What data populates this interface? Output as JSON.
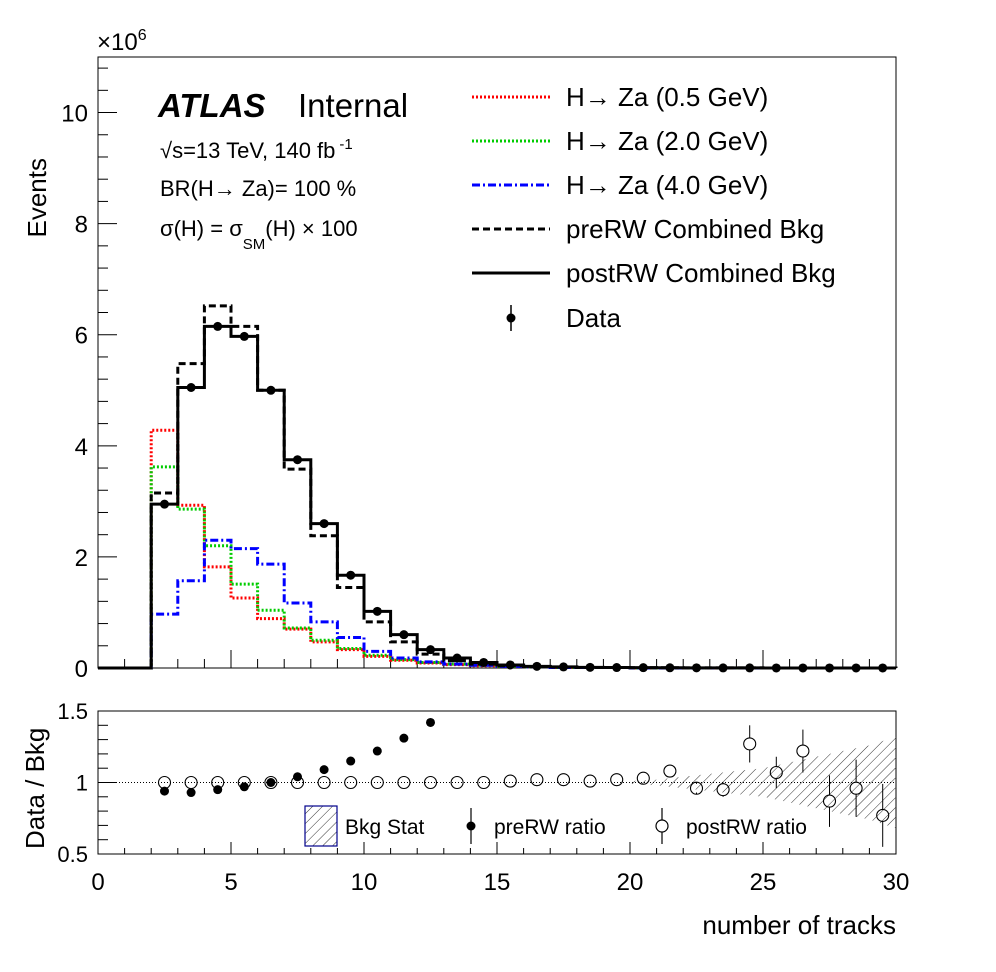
{
  "colors": {
    "sig05": "#ff0000",
    "sig20": "#00cc00",
    "sig40": "#0000ff",
    "bkg": "#000000",
    "hatch": "#333333",
    "hatch_frame": "#00008b"
  },
  "chart_data": [
    {
      "type": "line",
      "panel": "main",
      "exponent_label": "×10",
      "exponent_power": "6",
      "ylabel": "Events",
      "ylim": [
        0,
        11
      ],
      "xlim": [
        0,
        30
      ],
      "yticks": [
        "0",
        "2",
        "4",
        "6",
        "8",
        "10"
      ],
      "annotations": {
        "atlas": "ATLAS",
        "internal": "Internal",
        "energy_prefix": "√s=13 TeV, 140 fb",
        "energy_exp": "-1",
        "br": "BR(H→ Za)= 100 %",
        "xsec_a": "σ(H) = σ",
        "xsec_sub": "SM",
        "xsec_b": "(H) × 100"
      },
      "legend_position": "top-right",
      "x_edges": [
        2,
        3,
        4,
        5,
        6,
        7,
        8,
        9,
        10,
        11,
        12,
        13,
        14,
        15,
        16,
        17,
        18,
        19,
        20,
        21,
        22,
        23,
        24,
        25,
        26,
        27,
        28,
        29,
        30
      ],
      "series": [
        {
          "name": "H→ Za (0.5 GeV)",
          "style": "dotted",
          "color": "#ff0000",
          "values": [
            4.28,
            2.93,
            1.82,
            1.26,
            0.89,
            0.7,
            0.47,
            0.33,
            0.21,
            0.14,
            0.09,
            0.06,
            0.04,
            0.03,
            0.02,
            0.01,
            0.01,
            0.01,
            0,
            0,
            0,
            0,
            0,
            0,
            0,
            0,
            0,
            0
          ]
        },
        {
          "name": "H→ Za (2.0 GeV)",
          "style": "dotted",
          "color": "#00cc00",
          "values": [
            3.62,
            2.86,
            2.2,
            1.51,
            1.04,
            0.72,
            0.5,
            0.35,
            0.23,
            0.15,
            0.1,
            0.07,
            0.05,
            0.03,
            0.02,
            0.01,
            0.01,
            0.01,
            0,
            0,
            0,
            0,
            0,
            0,
            0,
            0,
            0,
            0
          ]
        },
        {
          "name": "H→ Za (4.0 GeV)",
          "style": "dashdot",
          "color": "#0000ff",
          "values": [
            0.97,
            1.57,
            2.3,
            2.15,
            1.87,
            1.17,
            0.83,
            0.55,
            0.3,
            0.18,
            0.11,
            0.07,
            0.05,
            0.03,
            0.02,
            0.01,
            0.01,
            0.01,
            0,
            0,
            0,
            0,
            0,
            0,
            0,
            0,
            0,
            0
          ]
        },
        {
          "name": "preRW Combined Bkg",
          "style": "dashed",
          "color": "#000000",
          "values": [
            3.15,
            5.48,
            6.52,
            6.15,
            5.0,
            3.58,
            2.38,
            1.45,
            0.83,
            0.47,
            0.25,
            0.13,
            0.07,
            0.04,
            0.02,
            0.015,
            0.01,
            0.008,
            0.005,
            0.004,
            0.003,
            0.002,
            0.002,
            0.001,
            0.001,
            0.001,
            0.001,
            0.001
          ]
        },
        {
          "name": "postRW Combined Bkg",
          "style": "solid",
          "color": "#000000",
          "values": [
            2.95,
            5.05,
            6.15,
            5.97,
            5.0,
            3.75,
            2.6,
            1.67,
            1.02,
            0.6,
            0.33,
            0.18,
            0.1,
            0.055,
            0.03,
            0.02,
            0.012,
            0.008,
            0.006,
            0.004,
            0.003,
            0.002,
            0.002,
            0.001,
            0.001,
            0.001,
            0.001,
            0.001
          ]
        },
        {
          "name": "Data",
          "style": "markers",
          "color": "#000000",
          "x": [
            2.5,
            3.5,
            4.5,
            5.5,
            6.5,
            7.5,
            8.5,
            9.5,
            10.5,
            11.5,
            12.5,
            13.5,
            14.5,
            15.5,
            16.5,
            17.5,
            18.5,
            19.5,
            20.5,
            21.5,
            22.5,
            23.5,
            24.5,
            25.5,
            26.5,
            27.5,
            28.5,
            29.5
          ],
          "values": [
            2.95,
            5.05,
            6.15,
            5.97,
            5.0,
            3.75,
            2.6,
            1.67,
            1.02,
            0.6,
            0.33,
            0.18,
            0.1,
            0.055,
            0.03,
            0.02,
            0.012,
            0.008,
            0.006,
            0.004,
            0.003,
            0.002,
            0.002,
            0.001,
            0.001,
            0.001,
            0.001,
            0.001
          ]
        }
      ]
    },
    {
      "type": "scatter",
      "panel": "ratio",
      "ylabel": "Data / Bkg",
      "xlabel": "number of tracks",
      "ylim": [
        0.5,
        1.5
      ],
      "xlim": [
        0,
        30
      ],
      "yticks": [
        "0.5",
        "1",
        "1.5"
      ],
      "xticks": [
        "0",
        "5",
        "10",
        "15",
        "20",
        "25",
        "30"
      ],
      "reference_line": 1,
      "legend_position": "bottom-right",
      "bkg_stat": {
        "name": "Bkg Stat",
        "x": [
          20,
          21,
          22,
          23,
          24,
          25,
          26,
          27,
          28,
          29,
          30
        ],
        "half_width": [
          0.01,
          0.02,
          0.04,
          0.06,
          0.08,
          0.1,
          0.14,
          0.18,
          0.22,
          0.26,
          0.32
        ]
      },
      "series": [
        {
          "name": "preRW ratio",
          "marker": "filled",
          "x": [
            2.5,
            3.5,
            4.5,
            5.5,
            6.5,
            7.5,
            8.5,
            9.5,
            10.5,
            11.5,
            12.5
          ],
          "values": [
            0.94,
            0.93,
            0.95,
            0.97,
            1.0,
            1.04,
            1.09,
            1.15,
            1.22,
            1.31,
            1.42
          ],
          "errors": [
            0,
            0,
            0,
            0,
            0,
            0,
            0,
            0,
            0,
            0,
            0
          ]
        },
        {
          "name": "postRW ratio",
          "marker": "open",
          "x": [
            2.5,
            3.5,
            4.5,
            5.5,
            6.5,
            7.5,
            8.5,
            9.5,
            10.5,
            11.5,
            12.5,
            13.5,
            14.5,
            15.5,
            16.5,
            17.5,
            18.5,
            19.5,
            20.5,
            21.5,
            22.5,
            23.5,
            24.5,
            25.5,
            26.5,
            27.5,
            28.5,
            29.5
          ],
          "values": [
            1.0,
            1.0,
            1.0,
            1.0,
            1.0,
            1.0,
            1.0,
            1.0,
            1.0,
            1.0,
            1.0,
            1.0,
            1.0,
            1.01,
            1.02,
            1.02,
            1.01,
            1.02,
            1.03,
            1.08,
            0.96,
            0.95,
            1.27,
            1.07,
            1.22,
            0.87,
            0.96,
            0.77
          ],
          "errors": [
            0,
            0,
            0,
            0,
            0,
            0,
            0,
            0,
            0,
            0,
            0,
            0,
            0,
            0,
            0,
            0,
            0,
            0,
            0,
            0,
            0.03,
            0.05,
            0.13,
            0.11,
            0.15,
            0.18,
            0.2,
            0.22
          ]
        }
      ]
    }
  ]
}
